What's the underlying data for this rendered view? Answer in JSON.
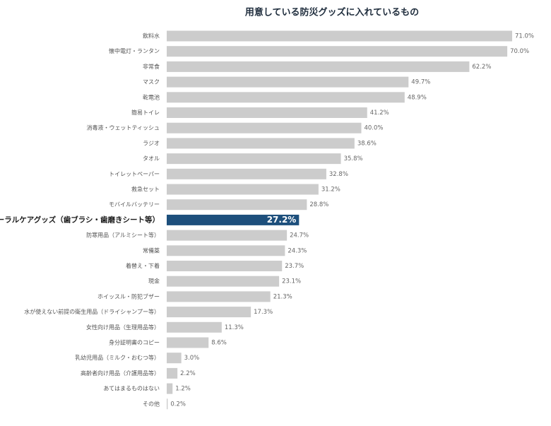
{
  "chart_data": {
    "type": "barh",
    "title": "用意している防災グッズに入れているもの",
    "categories": [
      "飲料水",
      "懐中電灯・ランタン",
      "非常食",
      "マスク",
      "乾電池",
      "簡易トイレ",
      "消毒液・ウェットティッシュ",
      "ラジオ",
      "タオル",
      "トイレットペーパー",
      "救急セット",
      "モバイルバッテリー",
      "オーラルケアグッズ（歯ブラシ・歯磨きシート等）",
      "防寒用品（アルミシート等）",
      "常備薬",
      "着替え・下着",
      "現金",
      "ホイッスル・防犯ブザー",
      "水が使えない前提の衛生用品（ドライシャンプー等）",
      "女性向け用品（生理用品等）",
      "身分証明書のコピー",
      "乳幼児用品（ミルク・おむつ等）",
      "高齢者向け用品（介護用品等）",
      "あてはまるものはない",
      "その他"
    ],
    "values": [
      71.0,
      70.0,
      62.2,
      49.7,
      48.9,
      41.2,
      40.0,
      38.6,
      35.8,
      32.8,
      31.2,
      28.8,
      27.2,
      24.7,
      24.3,
      23.7,
      23.1,
      21.3,
      17.3,
      11.3,
      8.6,
      3.0,
      2.2,
      1.2,
      0.2
    ],
    "value_labels": [
      "71.0%",
      "70.0%",
      "62.2%",
      "49.7%",
      "48.9%",
      "41.2%",
      "40.0%",
      "38.6%",
      "35.8%",
      "32.8%",
      "31.2%",
      "28.8%",
      "27.2%",
      "24.7%",
      "24.3%",
      "23.7%",
      "23.1%",
      "21.3%",
      "17.3%",
      "11.3%",
      "8.6%",
      "3.0%",
      "2.2%",
      "1.2%",
      "0.2%"
    ],
    "colors": [
      "#cccccc",
      "#cccccc",
      "#cccccc",
      "#cccccc",
      "#cccccc",
      "#cccccc",
      "#cccccc",
      "#cccccc",
      "#cccccc",
      "#cccccc",
      "#cccccc",
      "#cccccc",
      "#1d4f7c",
      "#cccccc",
      "#cccccc",
      "#cccccc",
      "#cccccc",
      "#cccccc",
      "#cccccc",
      "#cccccc",
      "#cccccc",
      "#cccccc",
      "#cccccc",
      "#cccccc",
      "#cccccc"
    ]
  }
}
